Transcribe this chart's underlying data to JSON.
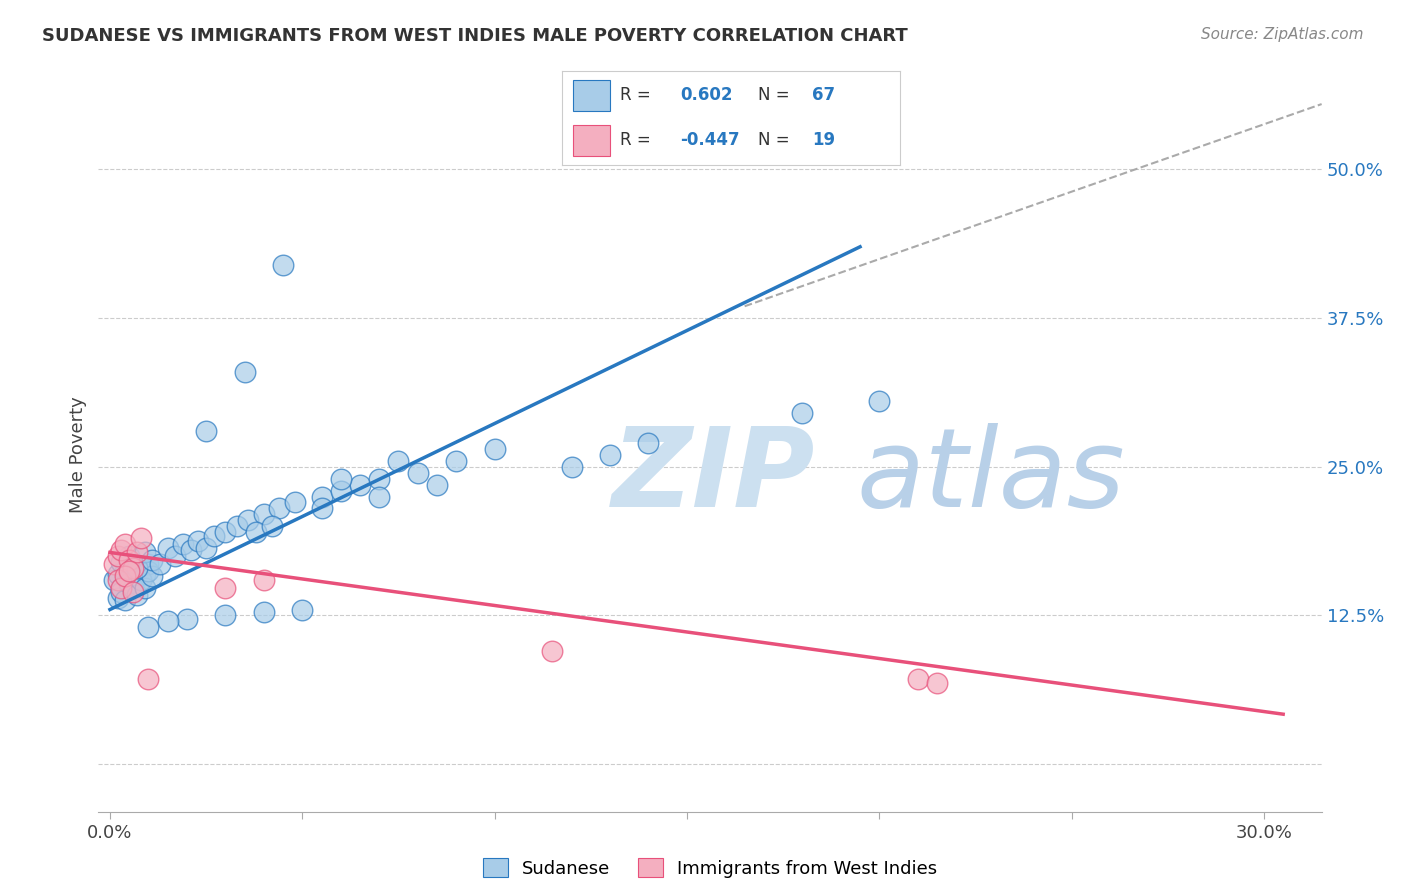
{
  "title": "SUDANESE VS IMMIGRANTS FROM WEST INDIES MALE POVERTY CORRELATION CHART",
  "source": "Source: ZipAtlas.com",
  "ylabel": "Male Poverty",
  "x_ticks": [
    0.0,
    0.05,
    0.1,
    0.15,
    0.2,
    0.25,
    0.3
  ],
  "y_ticks": [
    0.0,
    0.125,
    0.25,
    0.375,
    0.5
  ],
  "y_tick_labels": [
    "",
    "12.5%",
    "25.0%",
    "37.5%",
    "50.0%"
  ],
  "xlim": [
    -0.003,
    0.315
  ],
  "ylim": [
    -0.04,
    0.56
  ],
  "r_blue": 0.602,
  "n_blue": 67,
  "r_pink": -0.447,
  "n_pink": 19,
  "blue_color": "#a8cce8",
  "pink_color": "#f4afc0",
  "blue_line_color": "#2878c0",
  "pink_line_color": "#e8507a",
  "watermark_zip_color": "#cce0f0",
  "watermark_atlas_color": "#b8d0e8",
  "grid_color": "#cccccc",
  "blue_points_x": [
    0.001,
    0.002,
    0.003,
    0.004,
    0.005,
    0.006,
    0.007,
    0.008,
    0.009,
    0.01,
    0.002,
    0.003,
    0.004,
    0.005,
    0.006,
    0.007,
    0.008,
    0.009,
    0.01,
    0.011,
    0.003,
    0.005,
    0.007,
    0.009,
    0.011,
    0.013,
    0.015,
    0.017,
    0.019,
    0.021,
    0.023,
    0.025,
    0.027,
    0.03,
    0.033,
    0.036,
    0.04,
    0.044,
    0.048,
    0.055,
    0.06,
    0.065,
    0.07,
    0.08,
    0.09,
    0.1,
    0.05,
    0.04,
    0.03,
    0.02,
    0.015,
    0.01,
    0.038,
    0.042,
    0.055,
    0.07,
    0.085,
    0.12,
    0.13,
    0.14,
    0.18,
    0.2,
    0.06,
    0.075,
    0.025,
    0.035,
    0.045
  ],
  "blue_points_y": [
    0.155,
    0.16,
    0.148,
    0.162,
    0.158,
    0.152,
    0.165,
    0.155,
    0.16,
    0.168,
    0.14,
    0.145,
    0.138,
    0.152,
    0.148,
    0.142,
    0.155,
    0.148,
    0.162,
    0.158,
    0.17,
    0.175,
    0.165,
    0.178,
    0.172,
    0.168,
    0.182,
    0.175,
    0.185,
    0.18,
    0.188,
    0.182,
    0.192,
    0.195,
    0.2,
    0.205,
    0.21,
    0.215,
    0.22,
    0.225,
    0.23,
    0.235,
    0.24,
    0.245,
    0.255,
    0.265,
    0.13,
    0.128,
    0.125,
    0.122,
    0.12,
    0.115,
    0.195,
    0.2,
    0.215,
    0.225,
    0.235,
    0.25,
    0.26,
    0.27,
    0.295,
    0.305,
    0.24,
    0.255,
    0.28,
    0.33,
    0.42
  ],
  "pink_points_x": [
    0.001,
    0.002,
    0.003,
    0.004,
    0.005,
    0.006,
    0.007,
    0.008,
    0.002,
    0.003,
    0.004,
    0.005,
    0.006,
    0.03,
    0.04,
    0.21,
    0.215,
    0.115,
    0.01
  ],
  "pink_points_y": [
    0.168,
    0.175,
    0.18,
    0.185,
    0.172,
    0.165,
    0.178,
    0.19,
    0.155,
    0.148,
    0.158,
    0.162,
    0.145,
    0.148,
    0.155,
    0.072,
    0.068,
    0.095,
    0.072
  ],
  "blue_line_x": [
    0.0,
    0.195
  ],
  "blue_line_y": [
    0.13,
    0.435
  ],
  "pink_line_x": [
    0.0,
    0.305
  ],
  "pink_line_y": [
    0.178,
    0.042
  ],
  "diag_line_x": [
    0.165,
    0.315
  ],
  "diag_line_y": [
    0.385,
    0.555
  ]
}
